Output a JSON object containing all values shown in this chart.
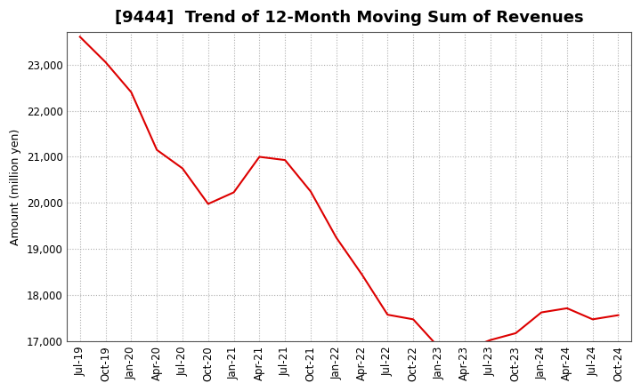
{
  "title": "[9444]  Trend of 12-Month Moving Sum of Revenues",
  "ylabel": "Amount (million yen)",
  "line_color": "#dd0000",
  "background_color": "#ffffff",
  "plot_bg_color": "#ffffff",
  "grid_color": "#999999",
  "xlabels": [
    "Jul-19",
    "Oct-19",
    "Jan-20",
    "Apr-20",
    "Jul-20",
    "Oct-20",
    "Jan-21",
    "Apr-21",
    "Jul-21",
    "Oct-21",
    "Jan-22",
    "Apr-22",
    "Jul-22",
    "Oct-22",
    "Jan-23",
    "Apr-23",
    "Jul-23",
    "Oct-23",
    "Jan-24",
    "Apr-24",
    "Jul-24",
    "Oct-24"
  ],
  "x_values": [
    0,
    1,
    2,
    3,
    4,
    5,
    6,
    7,
    8,
    9,
    10,
    11,
    12,
    13,
    14,
    15,
    16,
    17,
    18,
    19,
    20,
    21
  ],
  "y_values": [
    23600,
    23050,
    22400,
    21150,
    20750,
    19980,
    20230,
    21000,
    20930,
    20250,
    19250,
    18450,
    17580,
    17480,
    16870,
    16810,
    17030,
    17180,
    17630,
    17720,
    17480,
    17570
  ],
  "ylim": [
    17000,
    23700
  ],
  "yticks": [
    17000,
    18000,
    19000,
    20000,
    21000,
    22000,
    23000
  ],
  "title_fontsize": 13,
  "axis_fontsize": 9,
  "tick_fontsize": 8.5
}
